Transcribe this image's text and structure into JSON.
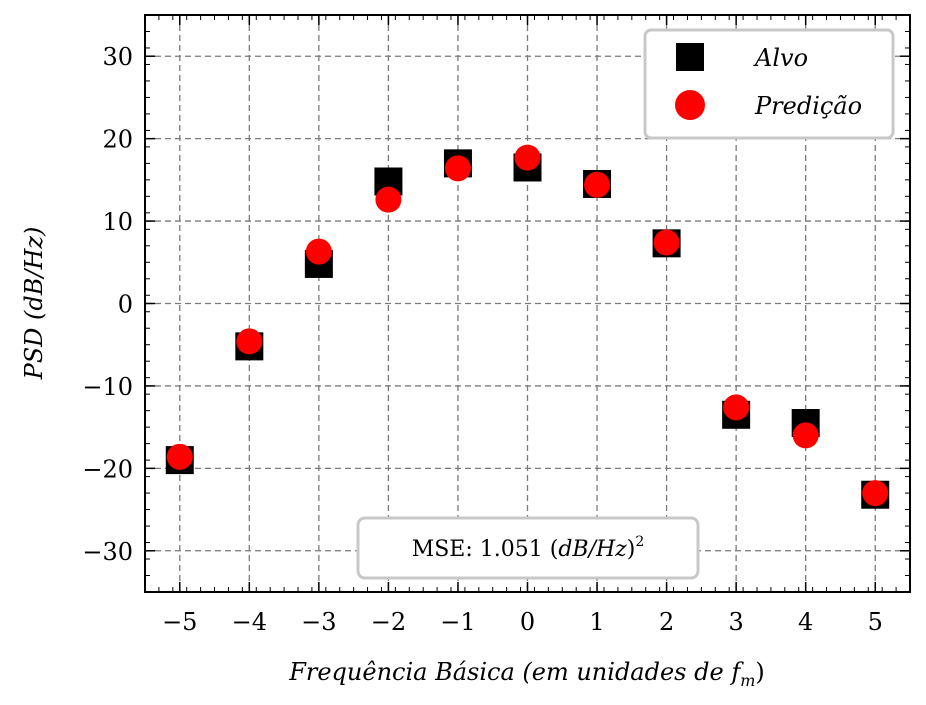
{
  "chart_data": {
    "type": "scatter",
    "title": "",
    "xlabel": "Frequência Básica (em unidades de f_m)",
    "xlabel_main": "Frequência Básica (em unidades de ",
    "xlabel_var": "f",
    "xlabel_sub": "m",
    "xlabel_close": ")",
    "ylabel": "PSD (dB/Hz)",
    "xlim": [
      -5.5,
      5.5
    ],
    "ylim": [
      -35,
      35
    ],
    "xticks": [
      -5,
      -4,
      -3,
      -2,
      -1,
      0,
      1,
      2,
      3,
      4,
      5
    ],
    "xtick_labels": [
      "−5",
      "−4",
      "−3",
      "−2",
      "−1",
      "0",
      "1",
      "2",
      "3",
      "4",
      "5"
    ],
    "yticks": [
      -30,
      -20,
      -10,
      0,
      10,
      20,
      30
    ],
    "ytick_labels": [
      "−30",
      "−20",
      "−10",
      "0",
      "10",
      "20",
      "30"
    ],
    "grid": true,
    "legend_position": "top-right",
    "x": [
      -5,
      -4,
      -3,
      -2,
      -1,
      0,
      1,
      2,
      3,
      4,
      5
    ],
    "series": [
      {
        "name": "Alvo",
        "marker": "square",
        "color": "#000000",
        "values": [
          -19,
          -5.2,
          4.8,
          14.8,
          17,
          16.5,
          14.5,
          7.3,
          -13.5,
          -14.5,
          -23.2
        ]
      },
      {
        "name": "Predição",
        "marker": "circle",
        "color": "#ff0000",
        "values": [
          -18.6,
          -4.6,
          6.3,
          12.6,
          16.4,
          17.7,
          14.4,
          7.4,
          -12.6,
          -16.0,
          -23.0
        ]
      }
    ],
    "annotation": {
      "prefix": "MSE: 1.051 (",
      "italic": "dB/Hz",
      "suffix": ")",
      "superscript": "2",
      "position": "bottom-center"
    }
  }
}
